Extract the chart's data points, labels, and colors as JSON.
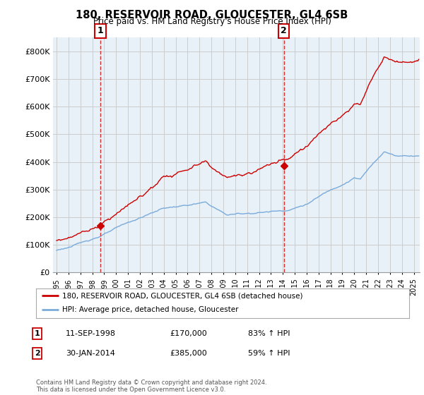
{
  "title1": "180, RESERVOIR ROAD, GLOUCESTER, GL4 6SB",
  "title2": "Price paid vs. HM Land Registry's House Price Index (HPI)",
  "ylim": [
    0,
    850000
  ],
  "yticks": [
    0,
    100000,
    200000,
    300000,
    400000,
    500000,
    600000,
    700000,
    800000
  ],
  "ytick_labels": [
    "£0",
    "£100K",
    "£200K",
    "£300K",
    "£400K",
    "£500K",
    "£600K",
    "£700K",
    "£800K"
  ],
  "sale1_x": 1998.667,
  "sale1_price": 170000,
  "sale1_label": "11-SEP-1998",
  "sale1_amount": "£170,000",
  "sale1_hpi": "83% ↑ HPI",
  "sale2_x": 2014.083,
  "sale2_price": 385000,
  "sale2_label": "30-JAN-2014",
  "sale2_amount": "£385,000",
  "sale2_hpi": "59% ↑ HPI",
  "line1_color": "#cc0000",
  "line2_color": "#7aabdb",
  "grid_color": "#cccccc",
  "chart_bg": "#e8f0f8",
  "background_color": "#ffffff",
  "legend_line1": "180, RESERVOIR ROAD, GLOUCESTER, GL4 6SB (detached house)",
  "legend_line2": "HPI: Average price, detached house, Gloucester",
  "footnote": "Contains HM Land Registry data © Crown copyright and database right 2024.\nThis data is licensed under the Open Government Licence v3.0.",
  "xlim_left": 1994.7,
  "xlim_right": 2025.5
}
